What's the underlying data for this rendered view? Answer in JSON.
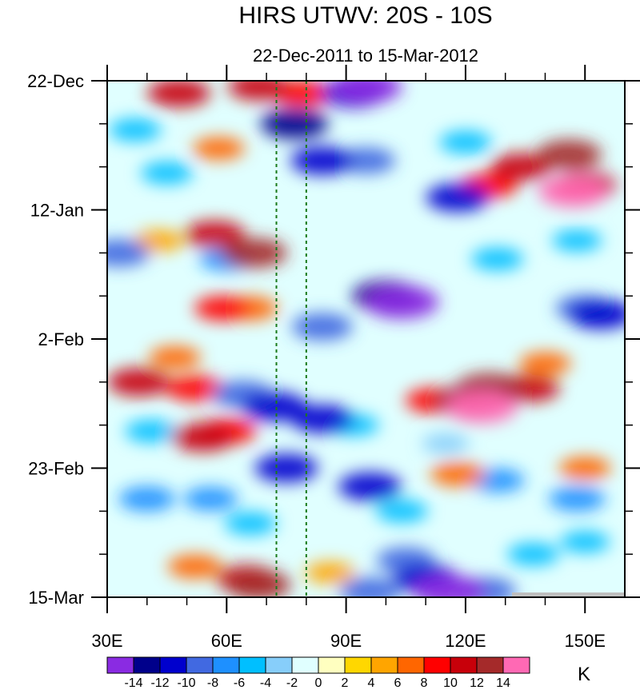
{
  "chart_data": {
    "type": "heatmap",
    "title": "HIRS UTWV: 20S - 10S",
    "subtitle": "22-Dec-2011 to 15-Mar-2012",
    "xlabel": "",
    "ylabel": "",
    "x_range_deg_east": [
      30,
      160
    ],
    "x_ticks": [
      {
        "value": 30,
        "label": "30E"
      },
      {
        "value": 60,
        "label": "60E"
      },
      {
        "value": 90,
        "label": "90E"
      },
      {
        "value": 120,
        "label": "120E"
      },
      {
        "value": 150,
        "label": "150E"
      }
    ],
    "y_range_days": [
      0,
      84
    ],
    "y_ticks": [
      {
        "value": 0,
        "label": "22-Dec"
      },
      {
        "value": 21,
        "label": "12-Jan"
      },
      {
        "value": 42,
        "label": "2-Feb"
      },
      {
        "value": 63,
        "label": "23-Feb"
      },
      {
        "value": 84,
        "label": "15-Mar"
      }
    ],
    "reference_lines_lon": [
      72.5,
      80
    ],
    "colorbar": {
      "unit": "K",
      "levels": [
        -14,
        -12,
        -10,
        -8,
        -6,
        -4,
        -2,
        0,
        2,
        4,
        6,
        8,
        10,
        12,
        14
      ],
      "level_labels": [
        "-14",
        "-12",
        "-10",
        "-8",
        "-6",
        "-4",
        "-2",
        "0",
        "2",
        "4",
        "6",
        "8",
        "10",
        "12",
        "14"
      ],
      "colors": [
        "#8a2be2",
        "#00008b",
        "#0000cd",
        "#4169e1",
        "#1e90ff",
        "#00bfff",
        "#87cefa",
        "#e0ffff",
        "#ffffc0",
        "#ffd700",
        "#ffa500",
        "#ff6600",
        "#ff0000",
        "#c8000a",
        "#a52a2a",
        "#ff69b4"
      ]
    },
    "anomaly_features": [
      {
        "lon": 48,
        "day": 2,
        "value": 11
      },
      {
        "lon": 68,
        "day": 1,
        "value": 10
      },
      {
        "lon": 79,
        "day": 2,
        "value": 9
      },
      {
        "lon": 92,
        "day": 2,
        "value": -12
      },
      {
        "lon": 95,
        "day": 1,
        "value": -15
      },
      {
        "lon": 77,
        "day": 7,
        "value": -13
      },
      {
        "lon": 84,
        "day": 13,
        "value": -11
      },
      {
        "lon": 95,
        "day": 13,
        "value": -9
      },
      {
        "lon": 37,
        "day": 8,
        "value": -6
      },
      {
        "lon": 58,
        "day": 11,
        "value": 6
      },
      {
        "lon": 45,
        "day": 15,
        "value": -6
      },
      {
        "lon": 134,
        "day": 14,
        "value": 10
      },
      {
        "lon": 146,
        "day": 12,
        "value": 12
      },
      {
        "lon": 150,
        "day": 17,
        "value": 11
      },
      {
        "lon": 147,
        "day": 18,
        "value": 14
      },
      {
        "lon": 126,
        "day": 17,
        "value": 8
      },
      {
        "lon": 120,
        "day": 10,
        "value": -6
      },
      {
        "lon": 118,
        "day": 19,
        "value": -11
      },
      {
        "lon": 128,
        "day": 29,
        "value": -6
      },
      {
        "lon": 148,
        "day": 26,
        "value": -5
      },
      {
        "lon": 43,
        "day": 26,
        "value": 5
      },
      {
        "lon": 57,
        "day": 25,
        "value": 10
      },
      {
        "lon": 67,
        "day": 28,
        "value": 12
      },
      {
        "lon": 60,
        "day": 29,
        "value": -7
      },
      {
        "lon": 33,
        "day": 28,
        "value": -10
      },
      {
        "lon": 100,
        "day": 35,
        "value": -13
      },
      {
        "lon": 104,
        "day": 36,
        "value": -16
      },
      {
        "lon": 59,
        "day": 37,
        "value": 8
      },
      {
        "lon": 66,
        "day": 37,
        "value": 7
      },
      {
        "lon": 84,
        "day": 40,
        "value": -10
      },
      {
        "lon": 150,
        "day": 37,
        "value": -9
      },
      {
        "lon": 154,
        "day": 38,
        "value": -12
      },
      {
        "lon": 47,
        "day": 45,
        "value": 6
      },
      {
        "lon": 38,
        "day": 49,
        "value": 11
      },
      {
        "lon": 52,
        "day": 50,
        "value": 9
      },
      {
        "lon": 64,
        "day": 51,
        "value": -10
      },
      {
        "lon": 72,
        "day": 53,
        "value": -12
      },
      {
        "lon": 84,
        "day": 55,
        "value": -11
      },
      {
        "lon": 112,
        "day": 52,
        "value": 8
      },
      {
        "lon": 120,
        "day": 52,
        "value": 12
      },
      {
        "lon": 126,
        "day": 50,
        "value": 13
      },
      {
        "lon": 124,
        "day": 53,
        "value": 15
      },
      {
        "lon": 136,
        "day": 50,
        "value": 10
      },
      {
        "lon": 140,
        "day": 46,
        "value": 6
      },
      {
        "lon": 41,
        "day": 57,
        "value": -6
      },
      {
        "lon": 54,
        "day": 58,
        "value": 11
      },
      {
        "lon": 60,
        "day": 57,
        "value": 9
      },
      {
        "lon": 75,
        "day": 63,
        "value": -11
      },
      {
        "lon": 92,
        "day": 56,
        "value": -5
      },
      {
        "lon": 115,
        "day": 59,
        "value": -4
      },
      {
        "lon": 40,
        "day": 68,
        "value": -8
      },
      {
        "lon": 56,
        "day": 68,
        "value": -7
      },
      {
        "lon": 96,
        "day": 66,
        "value": -11
      },
      {
        "lon": 104,
        "day": 70,
        "value": -6
      },
      {
        "lon": 128,
        "day": 65,
        "value": -7
      },
      {
        "lon": 148,
        "day": 68,
        "value": -8
      },
      {
        "lon": 150,
        "day": 63,
        "value": 6
      },
      {
        "lon": 118,
        "day": 64,
        "value": 7
      },
      {
        "lon": 66,
        "day": 72,
        "value": -6
      },
      {
        "lon": 105,
        "day": 78,
        "value": -9
      },
      {
        "lon": 150,
        "day": 75,
        "value": -5
      },
      {
        "lon": 137,
        "day": 77,
        "value": -6
      },
      {
        "lon": 52,
        "day": 79,
        "value": 7
      },
      {
        "lon": 65,
        "day": 81,
        "value": 10
      },
      {
        "lon": 68,
        "day": 82,
        "value": 12
      },
      {
        "lon": 86,
        "day": 80,
        "value": 5
      },
      {
        "lon": 110,
        "day": 81,
        "value": -12
      },
      {
        "lon": 116,
        "day": 83,
        "value": -15
      },
      {
        "lon": 96,
        "day": 83,
        "value": -10
      },
      {
        "lon": 125,
        "day": 83,
        "value": -10
      }
    ]
  }
}
